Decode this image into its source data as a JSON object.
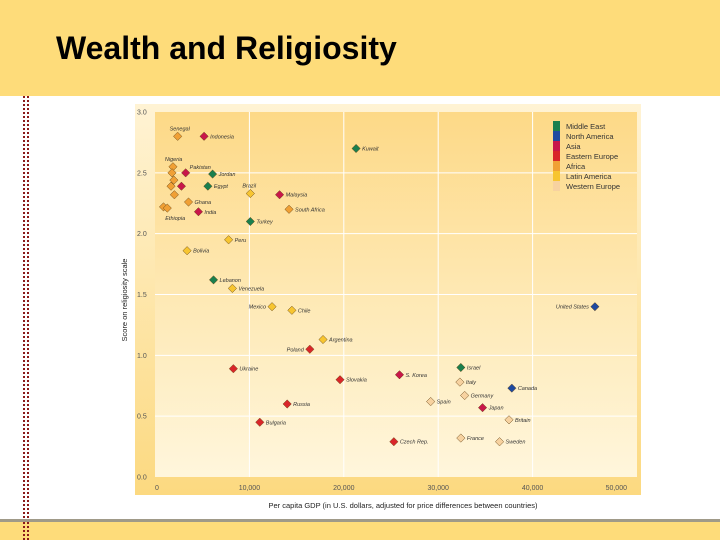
{
  "slide": {
    "title": "Wealth and Religiosity"
  },
  "chart_data": {
    "type": "scatter",
    "title": "",
    "xlabel": "Per capita GDP (in U.S. dollars, adjusted for price differences between countries)",
    "ylabel": "Score on religiosity scale",
    "xlim": [
      0,
      50000
    ],
    "ylim": [
      0.0,
      3.0
    ],
    "xticks": [
      0,
      10000,
      20000,
      30000,
      40000,
      50000
    ],
    "xtick_labels": [
      "0",
      "10,000",
      "20,000",
      "30,000",
      "40,000",
      "50,000"
    ],
    "yticks": [
      0.0,
      0.5,
      1.0,
      1.5,
      2.0,
      2.5,
      3.0
    ],
    "ytick_labels": [
      "0.0",
      "0.5",
      "1.0",
      "1.5",
      "2.0",
      "2.5",
      "3.0"
    ],
    "grid": true,
    "legend_position": "top-right",
    "legend": [
      {
        "name": "Middle East",
        "color": "#1a7f4e"
      },
      {
        "name": "North America",
        "color": "#1f4aa0"
      },
      {
        "name": "Asia",
        "color": "#c8174a"
      },
      {
        "name": "Eastern Europe",
        "color": "#d9262a"
      },
      {
        "name": "Africa",
        "color": "#f0a035"
      },
      {
        "name": "Latin America",
        "color": "#f7c531"
      },
      {
        "name": "Western Europe",
        "color": "#f7d2a0"
      }
    ],
    "points": [
      {
        "label": "Senegal",
        "region": "Africa",
        "x": 2400,
        "y": 2.8,
        "anchor": "above"
      },
      {
        "label": "Indonesia",
        "region": "Asia",
        "x": 5200,
        "y": 2.8,
        "anchor": "right"
      },
      {
        "label": "Kuwait",
        "region": "Middle East",
        "x": 21300,
        "y": 2.7,
        "anchor": "right"
      },
      {
        "label": "Nigeria",
        "region": "Africa",
        "x": 1900,
        "y": 2.55,
        "anchor": "above"
      },
      {
        "label": "",
        "region": "Africa",
        "x": 1800,
        "y": 2.5,
        "anchor": "none"
      },
      {
        "label": "Pakistan",
        "region": "Asia",
        "x": 3250,
        "y": 2.5,
        "anchor": "above-right"
      },
      {
        "label": "Jordan",
        "region": "Middle East",
        "x": 6100,
        "y": 2.49,
        "anchor": "right"
      },
      {
        "label": "",
        "region": "Africa",
        "x": 2000,
        "y": 2.44,
        "anchor": "none"
      },
      {
        "label": "",
        "region": "Asia",
        "x": 2800,
        "y": 2.39,
        "anchor": "none"
      },
      {
        "label": "Egypt",
        "region": "Middle East",
        "x": 5600,
        "y": 2.39,
        "anchor": "right"
      },
      {
        "label": "",
        "region": "Africa",
        "x": 1700,
        "y": 2.39,
        "anchor": "none"
      },
      {
        "label": "Brazil",
        "region": "Latin America",
        "x": 10100,
        "y": 2.33,
        "anchor": "above"
      },
      {
        "label": "Malaysia",
        "region": "Asia",
        "x": 13200,
        "y": 2.32,
        "anchor": "right"
      },
      {
        "label": "",
        "region": "Africa",
        "x": 2050,
        "y": 2.32,
        "anchor": "none"
      },
      {
        "label": "Ghana",
        "region": "Africa",
        "x": 3550,
        "y": 2.26,
        "anchor": "right"
      },
      {
        "label": "",
        "region": "Africa",
        "x": 900,
        "y": 2.22,
        "anchor": "none"
      },
      {
        "label": "Ethiopia",
        "region": "Africa",
        "x": 1300,
        "y": 2.21,
        "anchor": "below"
      },
      {
        "label": "India",
        "region": "Asia",
        "x": 4600,
        "y": 2.18,
        "anchor": "right"
      },
      {
        "label": "South Africa",
        "region": "Africa",
        "x": 14200,
        "y": 2.2,
        "anchor": "right"
      },
      {
        "label": "Turkey",
        "region": "Middle East",
        "x": 10100,
        "y": 2.1,
        "anchor": "right"
      },
      {
        "label": "Peru",
        "region": "Latin America",
        "x": 7800,
        "y": 1.95,
        "anchor": "right"
      },
      {
        "label": "Bolivia",
        "region": "Latin America",
        "x": 3400,
        "y": 1.86,
        "anchor": "right"
      },
      {
        "label": "Lebanon",
        "region": "Middle East",
        "x": 6200,
        "y": 1.62,
        "anchor": "right"
      },
      {
        "label": "Venezuela",
        "region": "Latin America",
        "x": 8200,
        "y": 1.55,
        "anchor": "right"
      },
      {
        "label": "Mexico",
        "region": "Latin America",
        "x": 12400,
        "y": 1.4,
        "anchor": "left"
      },
      {
        "label": "Chile",
        "region": "Latin America",
        "x": 14500,
        "y": 1.37,
        "anchor": "right"
      },
      {
        "label": "United States",
        "region": "North America",
        "x": 46600,
        "y": 1.4,
        "anchor": "left"
      },
      {
        "label": "Argentina",
        "region": "Latin America",
        "x": 17800,
        "y": 1.13,
        "anchor": "right"
      },
      {
        "label": "Poland",
        "region": "Eastern Europe",
        "x": 16400,
        "y": 1.05,
        "anchor": "left"
      },
      {
        "label": "Ukraine",
        "region": "Eastern Europe",
        "x": 8300,
        "y": 0.89,
        "anchor": "right"
      },
      {
        "label": "Slovakia",
        "region": "Eastern Europe",
        "x": 19600,
        "y": 0.8,
        "anchor": "right"
      },
      {
        "label": "S. Korea",
        "region": "Asia",
        "x": 25900,
        "y": 0.84,
        "anchor": "right"
      },
      {
        "label": "Israel",
        "region": "Middle East",
        "x": 32400,
        "y": 0.9,
        "anchor": "right"
      },
      {
        "label": "Italy",
        "region": "Western Europe",
        "x": 32300,
        "y": 0.78,
        "anchor": "right"
      },
      {
        "label": "Canada",
        "region": "North America",
        "x": 37800,
        "y": 0.73,
        "anchor": "right"
      },
      {
        "label": "Germany",
        "region": "Western Europe",
        "x": 32800,
        "y": 0.67,
        "anchor": "right"
      },
      {
        "label": "Spain",
        "region": "Western Europe",
        "x": 29200,
        "y": 0.62,
        "anchor": "right"
      },
      {
        "label": "Russia",
        "region": "Eastern Europe",
        "x": 14000,
        "y": 0.6,
        "anchor": "right"
      },
      {
        "label": "Japan",
        "region": "Asia",
        "x": 34700,
        "y": 0.57,
        "anchor": "right"
      },
      {
        "label": "Britain",
        "region": "Western Europe",
        "x": 37500,
        "y": 0.47,
        "anchor": "right"
      },
      {
        "label": "Bulgaria",
        "region": "Eastern Europe",
        "x": 11100,
        "y": 0.45,
        "anchor": "right"
      },
      {
        "label": "Czech Rep.",
        "region": "Eastern Europe",
        "x": 25300,
        "y": 0.29,
        "anchor": "right"
      },
      {
        "label": "France",
        "region": "Western Europe",
        "x": 32400,
        "y": 0.32,
        "anchor": "right"
      },
      {
        "label": "Sweden",
        "region": "Western Europe",
        "x": 36500,
        "y": 0.29,
        "anchor": "right"
      }
    ]
  }
}
